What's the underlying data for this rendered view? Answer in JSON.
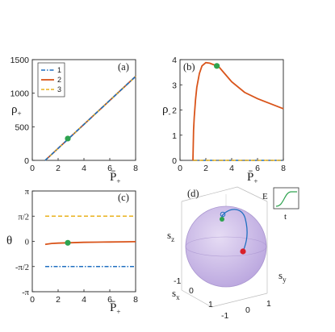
{
  "colors": {
    "series1": "#1f6fc0",
    "series2": "#d9541a",
    "series3": "#eab21e",
    "marker": "#2ea34f",
    "red_marker": "#d9202a",
    "sphere": "#c9b8e6",
    "trajectory": "#1f6fc0"
  },
  "chart_data": [
    {
      "type": "line",
      "panel_label": "(a)",
      "ylabel": "ρ",
      "ylabel_sub": "+",
      "xlabel": "P̄",
      "xlabel_sub": "+",
      "xlim": [
        0,
        8
      ],
      "ylim": [
        0,
        1500
      ],
      "xticks": [
        "0",
        "2",
        "4",
        "6",
        "8"
      ],
      "yticks": [
        "0",
        "500",
        "1000",
        "1500"
      ],
      "legend": [
        "1",
        "2",
        "3"
      ],
      "legend_placement": "top-left",
      "series": [
        {
          "name": "1",
          "style": "dash-dot",
          "x": [
            1,
            8
          ],
          "y": [
            0,
            1250
          ]
        },
        {
          "name": "2",
          "style": "solid",
          "x": [
            1,
            8
          ],
          "y": [
            0,
            1250
          ]
        },
        {
          "name": "3",
          "style": "dashed",
          "x": [
            1,
            8
          ],
          "y": [
            0,
            1250
          ]
        }
      ],
      "marker_point": {
        "x": 2.75,
        "y": 325
      }
    },
    {
      "type": "line",
      "panel_label": "(b)",
      "ylabel": "ρ",
      "ylabel_sub": "-",
      "xlabel": "P̄",
      "xlabel_sub": "+",
      "xlim": [
        0,
        8
      ],
      "ylim": [
        0,
        4
      ],
      "xticks": [
        "0",
        "2",
        "4",
        "6",
        "8"
      ],
      "yticks": [
        "0",
        "1",
        "2",
        "3",
        "4"
      ],
      "series": [
        {
          "name": "1",
          "style": "dash-dot",
          "x": [
            1,
            8
          ],
          "y": [
            0,
            0
          ]
        },
        {
          "name": "2",
          "style": "solid",
          "x": [
            1,
            1.05,
            1.1,
            1.2,
            1.3,
            1.5,
            1.7,
            2.0,
            2.3,
            2.6,
            3.0,
            3.5,
            4.0,
            5.0,
            6.0,
            7.0,
            8.0
          ],
          "y": [
            0,
            1.2,
            1.7,
            2.4,
            2.9,
            3.45,
            3.75,
            3.88,
            3.86,
            3.8,
            3.72,
            3.42,
            3.12,
            2.7,
            2.45,
            2.25,
            2.05
          ]
        },
        {
          "name": "3",
          "style": "dashed",
          "x": [
            1,
            8
          ],
          "y": [
            0,
            0
          ]
        }
      ],
      "marker_point": {
        "x": 2.85,
        "y": 3.75
      }
    },
    {
      "type": "line",
      "panel_label": "(c)",
      "ylabel": "θ",
      "xlabel": "P̄",
      "xlabel_sub": "+",
      "xlim": [
        0,
        8
      ],
      "ylim": [
        -3.1416,
        3.1416
      ],
      "xticks": [
        "0",
        "2",
        "4",
        "6",
        "8"
      ],
      "yticks": [
        "-π",
        "-π/2",
        "0",
        "π/2",
        "π"
      ],
      "series": [
        {
          "name": "1",
          "style": "dash-dot",
          "x": [
            1,
            8
          ],
          "y": [
            -1.5708,
            -1.5708
          ]
        },
        {
          "name": "2",
          "style": "solid",
          "x": [
            1,
            1.5,
            2.0,
            2.8,
            4,
            5,
            6,
            7,
            8
          ],
          "y": [
            -0.19,
            -0.13,
            -0.11,
            -0.09,
            -0.06,
            -0.05,
            -0.04,
            -0.03,
            -0.02
          ]
        },
        {
          "name": "3",
          "style": "dashed",
          "x": [
            1,
            8
          ],
          "y": [
            1.5708,
            1.5708
          ]
        }
      ],
      "marker_point": {
        "x": 2.75,
        "y": -0.09
      }
    }
  ],
  "panel_d": {
    "panel_label": "(d)",
    "zlabel": "s",
    "zlabel_sub": "z",
    "ylabel": "s",
    "ylabel_sub": "y",
    "xlabel": "s",
    "xlabel_sub": "x",
    "xticks": [
      "-1",
      "0",
      "1"
    ],
    "yticks": [
      "-1",
      "0",
      "1"
    ],
    "inset": {
      "ylabel": "E",
      "xlabel": "t"
    }
  }
}
